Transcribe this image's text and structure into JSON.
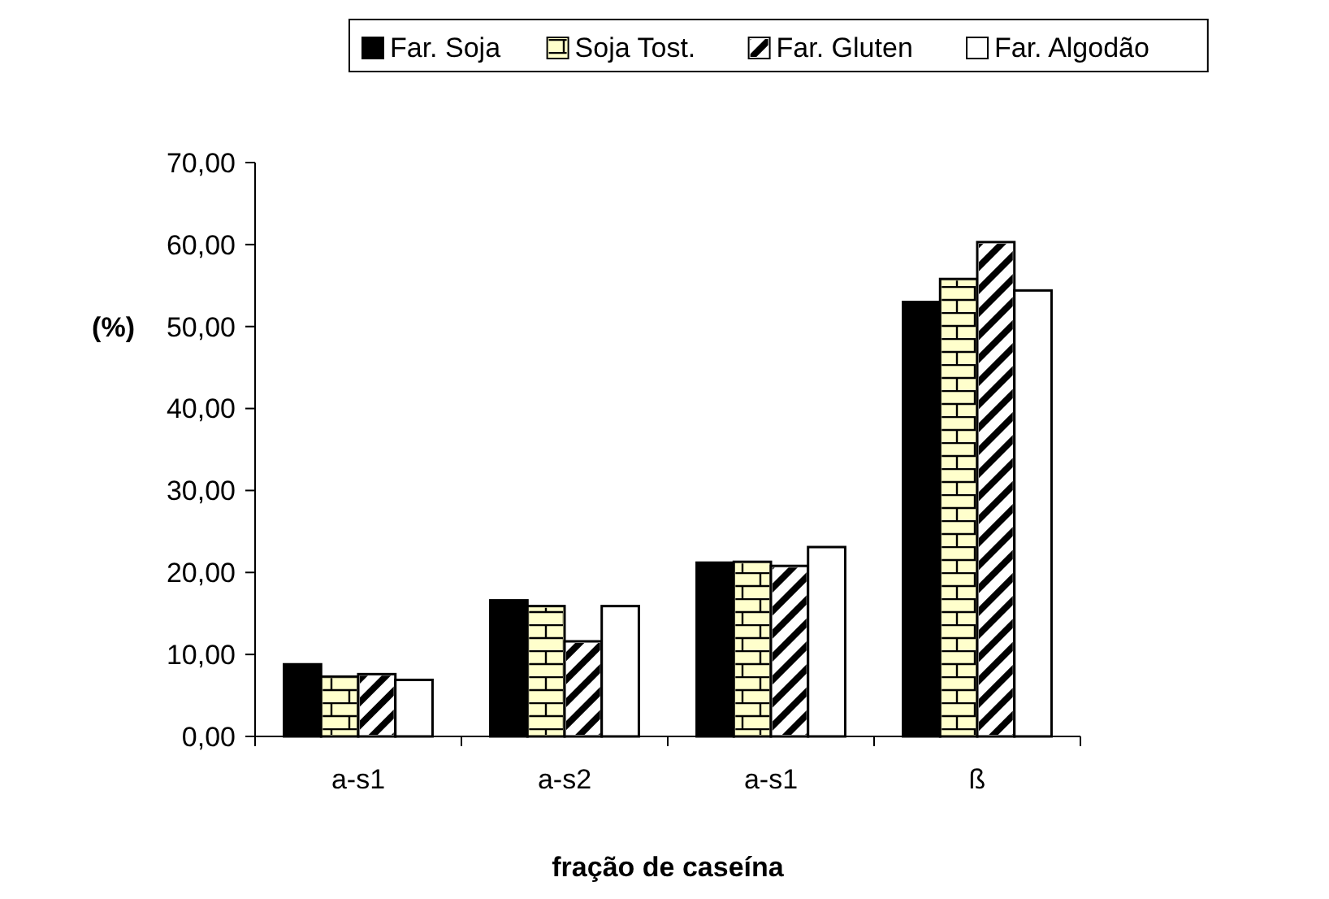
{
  "chart_data": {
    "type": "bar",
    "xlabel": "fração de caseína",
    "ylabel": "(%)",
    "categories": [
      "a-s1",
      "a-s2",
      "a-s1",
      "ß"
    ],
    "series": [
      {
        "name": "Far. Soja",
        "color": "#000000",
        "values": [
          8.8,
          16.6,
          21.2,
          53.0
        ]
      },
      {
        "name": "Soja Tost.",
        "color": "#ffffcc",
        "values": [
          7.3,
          15.9,
          21.3,
          55.8
        ]
      },
      {
        "name": "Far. Gluten",
        "color": "#ffffff",
        "values": [
          7.6,
          11.6,
          20.8,
          60.3
        ]
      },
      {
        "name": "Far. Algodão",
        "color": "#ffffff",
        "values": [
          6.9,
          15.9,
          23.1,
          54.4
        ]
      }
    ],
    "ylim": [
      0,
      70
    ],
    "yticks": [
      {
        "value": 0,
        "label": "0,00"
      },
      {
        "value": 10,
        "label": "10,00"
      },
      {
        "value": 20,
        "label": "20,00"
      },
      {
        "value": 30,
        "label": "30,00"
      },
      {
        "value": 40,
        "label": "40,00"
      },
      {
        "value": 50,
        "label": "50,00"
      },
      {
        "value": 60,
        "label": "60,00"
      },
      {
        "value": 70,
        "label": "70,00"
      }
    ],
    "grid": false,
    "legend": "top"
  }
}
